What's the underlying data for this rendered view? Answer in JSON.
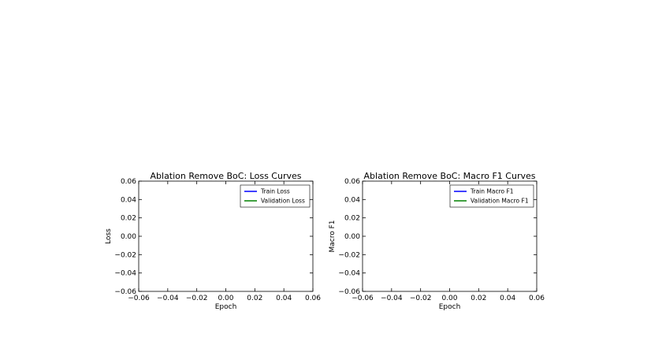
{
  "chart_data": [
    {
      "type": "line",
      "title": "Ablation Remove BoC: Loss Curves",
      "xlabel": "Epoch",
      "ylabel": "Loss",
      "xlim": [
        -0.06,
        0.06
      ],
      "ylim": [
        -0.06,
        0.06
      ],
      "xticks": [
        "−0.06",
        "−0.04",
        "−0.02",
        "0.00",
        "0.02",
        "0.04",
        "0.06"
      ],
      "yticks": [
        "0.06",
        "0.04",
        "0.02",
        "0.00",
        "−0.02",
        "−0.04",
        "−0.06"
      ],
      "legend_position": "top-right",
      "grid": false,
      "series": [
        {
          "name": "Train Loss",
          "color": "#0000ff",
          "x": [],
          "y": []
        },
        {
          "name": "Validation Loss",
          "color": "#008000",
          "x": [],
          "y": []
        }
      ]
    },
    {
      "type": "line",
      "title": "Ablation Remove BoC: Macro F1 Curves",
      "xlabel": "Epoch",
      "ylabel": "Macro F1",
      "xlim": [
        -0.06,
        0.06
      ],
      "ylim": [
        -0.06,
        0.06
      ],
      "xticks": [
        "−0.06",
        "−0.04",
        "−0.02",
        "0.00",
        "0.02",
        "0.04",
        "0.06"
      ],
      "yticks": [
        "0.06",
        "0.04",
        "0.02",
        "0.00",
        "−0.02",
        "−0.04",
        "−0.06"
      ],
      "legend_position": "top-right",
      "grid": false,
      "series": [
        {
          "name": "Train Macro F1",
          "color": "#0000ff",
          "x": [],
          "y": []
        },
        {
          "name": "Validation Macro F1",
          "color": "#008000",
          "x": [],
          "y": []
        }
      ]
    }
  ]
}
